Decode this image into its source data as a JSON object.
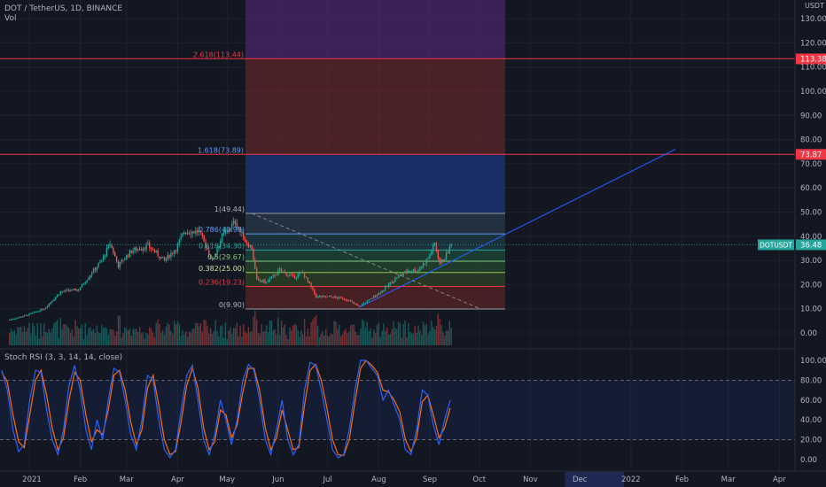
{
  "header": {
    "symbol_line": "DOT / TetherUS, 1D, BINANCE",
    "vol_label": "Vol",
    "rsi_label": "Stoch RSI (3, 3, 14, 14, close)",
    "currency": "USDT"
  },
  "colors": {
    "background": "#131722",
    "up": "#26a69a",
    "down": "#ef5350",
    "fib_line": "#f23645",
    "trend_line": "#2962ff",
    "rsi_k": "#2962ff",
    "rsi_d": "#ff6d00",
    "ticker_tag": "#26a69a"
  },
  "chart_data": {
    "type": "candlestick",
    "ticker": "DOTUSDT",
    "last_price_label": "36.48",
    "last_price": 36.48,
    "price_axis_ticks": [
      "130.00",
      "120.00",
      "110.00",
      "100.00",
      "90.00",
      "80.00",
      "70.00",
      "60.00",
      "50.00",
      "40.00",
      "30.00",
      "20.00",
      "10.00",
      "0.00"
    ],
    "price_axis_values": [
      130,
      120,
      110,
      100,
      90,
      80,
      70,
      60,
      50,
      40,
      30,
      20,
      10,
      0
    ],
    "price_markers": [
      {
        "label": "113.38",
        "value": 113.38
      },
      {
        "label": "73.87",
        "value": 73.87
      }
    ],
    "x_axis_labels": [
      "2021",
      "Feb",
      "Mar",
      "Apr",
      "May",
      "Jun",
      "Jul",
      "Aug",
      "Sep",
      "Oct",
      "Nov",
      "Dec",
      "2022",
      "Feb",
      "Mar",
      "Apr"
    ],
    "fib_levels": [
      {
        "label": "2.618(113.44)",
        "value": 113.44
      },
      {
        "label": "1.618(73.89)",
        "value": 73.89
      },
      {
        "label": "1(49.44)",
        "value": 49.44
      },
      {
        "label": "0.786(40.98)",
        "value": 40.98
      },
      {
        "label": "0.618(34.30)",
        "value": 34.3
      },
      {
        "label": "0.5(29.67)",
        "value": 29.67
      },
      {
        "label": "0.382(25.00)",
        "value": 25.0
      },
      {
        "label": "0.236(19.23)",
        "value": 19.23
      },
      {
        "label": "0(9.90)",
        "value": 9.9
      }
    ],
    "candle_anchors": [
      {
        "date": "2020-12-20",
        "close": 5.5
      },
      {
        "date": "2020-12-31",
        "close": 7.5
      },
      {
        "date": "2021-01-10",
        "close": 10
      },
      {
        "date": "2021-01-20",
        "close": 17
      },
      {
        "date": "2021-01-31",
        "close": 18
      },
      {
        "date": "2021-02-08",
        "close": 25
      },
      {
        "date": "2021-02-14",
        "close": 30
      },
      {
        "date": "2021-02-19",
        "close": 37
      },
      {
        "date": "2021-02-24",
        "close": 28
      },
      {
        "date": "2021-03-04",
        "close": 34
      },
      {
        "date": "2021-03-14",
        "close": 36
      },
      {
        "date": "2021-03-24",
        "close": 30
      },
      {
        "date": "2021-03-31",
        "close": 35
      },
      {
        "date": "2021-04-05",
        "close": 42
      },
      {
        "date": "2021-04-14",
        "close": 42
      },
      {
        "date": "2021-04-22",
        "close": 30
      },
      {
        "date": "2021-04-28",
        "close": 40
      },
      {
        "date": "2021-05-06",
        "close": 46
      },
      {
        "date": "2021-05-12",
        "close": 38
      },
      {
        "date": "2021-05-16",
        "close": 35
      },
      {
        "date": "2021-05-19",
        "close": 22
      },
      {
        "date": "2021-05-25",
        "close": 21
      },
      {
        "date": "2021-06-02",
        "close": 26
      },
      {
        "date": "2021-06-10",
        "close": 23
      },
      {
        "date": "2021-06-16",
        "close": 25
      },
      {
        "date": "2021-06-24",
        "close": 15
      },
      {
        "date": "2021-07-02",
        "close": 15
      },
      {
        "date": "2021-07-12",
        "close": 14
      },
      {
        "date": "2021-07-20",
        "close": 11
      },
      {
        "date": "2021-07-27",
        "close": 14
      },
      {
        "date": "2021-08-04",
        "close": 18
      },
      {
        "date": "2021-08-12",
        "close": 23
      },
      {
        "date": "2021-08-19",
        "close": 26
      },
      {
        "date": "2021-08-25",
        "close": 26
      },
      {
        "date": "2021-08-31",
        "close": 31
      },
      {
        "date": "2021-09-04",
        "close": 37
      },
      {
        "date": "2021-09-07",
        "close": 29
      },
      {
        "date": "2021-09-10",
        "close": 31
      },
      {
        "date": "2021-09-14",
        "close": 36.48
      }
    ],
    "stoch_rsi": {
      "label": "Stoch RSI (3, 3, 14, 14, close)",
      "axis_ticks": [
        "100.00",
        "80.00",
        "60.00",
        "40.00",
        "20.00",
        "0.00"
      ],
      "axis_values": [
        100,
        80,
        60,
        40,
        20,
        0
      ],
      "upper_band": 80,
      "lower_band": 20,
      "k_values": [
        90,
        70,
        30,
        8,
        15,
        60,
        90,
        88,
        50,
        20,
        5,
        30,
        75,
        95,
        70,
        30,
        10,
        40,
        20,
        60,
        92,
        88,
        60,
        25,
        10,
        40,
        85,
        80,
        40,
        10,
        2,
        10,
        50,
        85,
        95,
        60,
        20,
        5,
        25,
        60,
        40,
        15,
        40,
        80,
        96,
        90,
        60,
        20,
        5,
        30,
        60,
        20,
        5,
        15,
        70,
        98,
        95,
        70,
        40,
        10,
        2,
        5,
        30,
        70,
        100,
        100,
        92,
        85,
        60,
        70,
        55,
        40,
        10,
        5,
        30,
        70,
        65,
        35,
        15,
        40,
        60
      ],
      "d_values": [
        88,
        78,
        45,
        18,
        12,
        45,
        80,
        90,
        65,
        32,
        10,
        22,
        60,
        88,
        80,
        45,
        18,
        30,
        25,
        50,
        85,
        90,
        70,
        38,
        15,
        30,
        72,
        85,
        55,
        20,
        5,
        8,
        38,
        75,
        92,
        72,
        32,
        10,
        18,
        50,
        45,
        22,
        35,
        68,
        92,
        92,
        70,
        32,
        10,
        22,
        50,
        30,
        10,
        12,
        55,
        90,
        96,
        80,
        52,
        20,
        5,
        4,
        20,
        58,
        92,
        100,
        95,
        88,
        70,
        68,
        60,
        48,
        20,
        8,
        22,
        58,
        65,
        45,
        22,
        32,
        52
      ]
    },
    "grid": true,
    "legend": "none"
  }
}
